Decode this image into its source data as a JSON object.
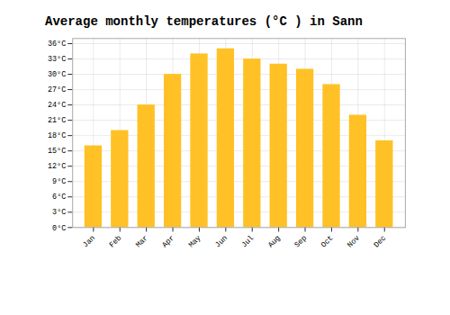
{
  "chart_data": {
    "type": "bar",
    "title": "Average monthly temperatures (°C ) in Sann",
    "categories": [
      "Jan",
      "Feb",
      "Mar",
      "Apr",
      "May",
      "Jun",
      "Jul",
      "Aug",
      "Sep",
      "Oct",
      "Nov",
      "Dec"
    ],
    "values": [
      16,
      19,
      24,
      30,
      34,
      35,
      33,
      32,
      31,
      28,
      22,
      17
    ],
    "color": "#FFC125",
    "ylim": [
      0,
      37
    ],
    "yticks": [
      {
        "value": 0,
        "label": "0°C"
      },
      {
        "value": 3,
        "label": "3°C"
      },
      {
        "value": 6,
        "label": "6°C"
      },
      {
        "value": 9,
        "label": "9°C"
      },
      {
        "value": 12,
        "label": "12°C"
      },
      {
        "value": 15,
        "label": "15°C"
      },
      {
        "value": 18,
        "label": "18°C"
      },
      {
        "value": 21,
        "label": "21°C"
      },
      {
        "value": 24,
        "label": "24°C"
      },
      {
        "value": 27,
        "label": "27°C"
      },
      {
        "value": 30,
        "label": "30°C"
      },
      {
        "value": 33,
        "label": "33°C"
      },
      {
        "value": 36,
        "label": "36°C"
      }
    ],
    "grid": true
  }
}
